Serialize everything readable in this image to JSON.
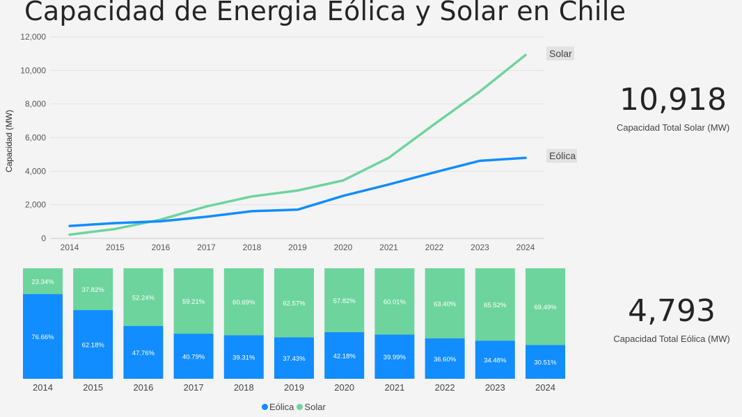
{
  "title": "Capacidad de Energia Eólica y Solar en Chile",
  "colors": {
    "eolica": "#118dff",
    "solar": "#6dd49e"
  },
  "kpis": {
    "solar": {
      "value": "10,918",
      "label": "Capacidad Total Solar (MW)"
    },
    "eolica": {
      "value": "4,793",
      "label": "Capacidad Total Eólica (MW)"
    }
  },
  "legend": {
    "eolica": "Eólica",
    "solar": "Solar"
  },
  "chart_data": [
    {
      "type": "line",
      "x": [
        "2014",
        "2015",
        "2016",
        "2017",
        "2018",
        "2019",
        "2020",
        "2021",
        "2022",
        "2023",
        "2024"
      ],
      "ylabel": "Capacidad (MW)",
      "ylim": [
        0,
        12000
      ],
      "yticks": [
        "0",
        "2,000",
        "4,000",
        "6,000",
        "8,000",
        "10,000",
        "12,000"
      ],
      "ytick_values": [
        0,
        2000,
        4000,
        6000,
        8000,
        10000,
        12000
      ],
      "grid": true,
      "series": [
        {
          "name": "Solar",
          "color": "#6dd49e",
          "values": [
            220,
            560,
            1120,
            1900,
            2500,
            2850,
            3450,
            4800,
            6800,
            8750,
            10918
          ]
        },
        {
          "name": "Eólica",
          "color": "#118dff",
          "values": [
            740,
            910,
            1020,
            1290,
            1620,
            1710,
            2530,
            3210,
            3930,
            4620,
            4793
          ]
        }
      ]
    },
    {
      "type": "bar",
      "stacked": "100%",
      "categories": [
        "2014",
        "2015",
        "2016",
        "2017",
        "2018",
        "2019",
        "2020",
        "2021",
        "2022",
        "2023",
        "2024"
      ],
      "series": [
        {
          "name": "Eólica",
          "color": "#118dff",
          "values": [
            76.66,
            62.18,
            47.76,
            40.79,
            39.31,
            37.43,
            42.18,
            39.99,
            36.6,
            34.48,
            30.51
          ],
          "labels": [
            "76.66%",
            "62.18%",
            "47.76%",
            "40.79%",
            "39.31%",
            "37.43%",
            "42.18%",
            "39.99%",
            "36.60%",
            "34.48%",
            "30.51%"
          ]
        },
        {
          "name": "Solar",
          "color": "#6dd49e",
          "values": [
            23.34,
            37.82,
            52.24,
            59.21,
            60.69,
            62.57,
            57.82,
            60.01,
            63.4,
            65.52,
            69.49
          ],
          "labels": [
            "23.34%",
            "37.82%",
            "52.24%",
            "59.21%",
            "60.69%",
            "62.57%",
            "57.82%",
            "60.01%",
            "63.40%",
            "65.52%",
            "69.49%"
          ]
        }
      ],
      "legend": "bottom"
    }
  ]
}
